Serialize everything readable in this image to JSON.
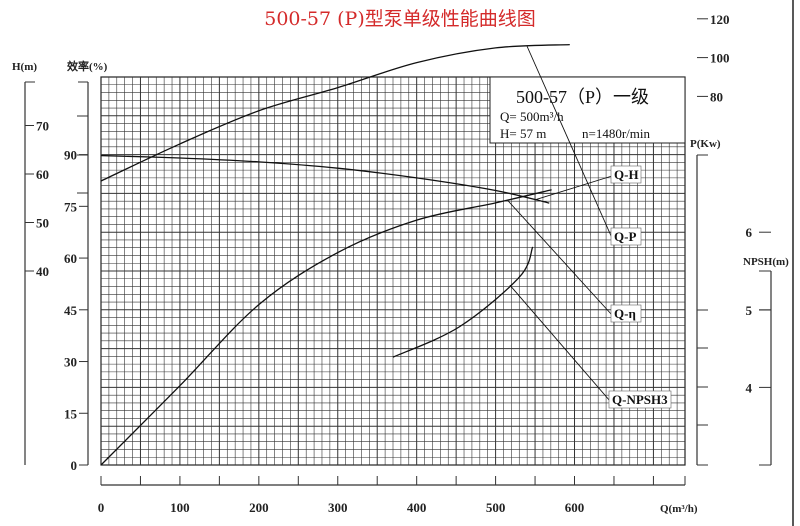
{
  "title": "500-57 (P)型泵单级性能曲线图",
  "info_box": {
    "model": "500-57（P）一级",
    "flow": "Q= 500m³/h",
    "head": "H= 57 m",
    "speed": "n=1480r/min"
  },
  "chart_data": {
    "type": "line",
    "title": "500-57 (P)型泵单级性能曲线图",
    "grid": true,
    "x_axis": {
      "label": "Q(m³/h)",
      "range": [
        0,
        740
      ],
      "ticks": [
        0,
        100,
        200,
        300,
        400,
        500,
        600
      ]
    },
    "y_axes": [
      {
        "id": "H",
        "label": "H(m)",
        "side": "left",
        "range": [
          0,
          80
        ],
        "ticks": [
          40,
          50,
          60,
          70
        ]
      },
      {
        "id": "eta",
        "label": "效率(%)",
        "side": "left",
        "range": [
          0,
          112.5
        ],
        "ticks": [
          0,
          15,
          30,
          45,
          60,
          75,
          90
        ]
      },
      {
        "id": "P",
        "label": "P(Kw)",
        "side": "right",
        "range": [
          -110,
          90
        ],
        "ticks": [
          80,
          100,
          120
        ]
      },
      {
        "id": "NPSH",
        "label": "NPSH(m)",
        "side": "right",
        "range": [
          3,
          8
        ],
        "ticks": [
          4,
          5,
          6
        ]
      }
    ],
    "series": [
      {
        "name": "Q-H",
        "axis": "H",
        "x": [
          0,
          100,
          200,
          300,
          400,
          500,
          568
        ],
        "y": [
          63.8,
          63.3,
          62.5,
          61.2,
          59.2,
          56.6,
          54.0
        ]
      },
      {
        "name": "Q-P",
        "axis": "P",
        "x": [
          0,
          100,
          200,
          300,
          400,
          500,
          594
        ],
        "y": [
          36.4,
          55.5,
          72.6,
          84.5,
          97.4,
          105.0,
          106.7
        ]
      },
      {
        "name": "Q-η",
        "axis": "eta",
        "x": [
          0,
          100,
          200,
          300,
          400,
          500,
          571
        ],
        "y": [
          0,
          23,
          46.5,
          61.6,
          71,
          76,
          79.8
        ]
      },
      {
        "name": "Q-NPSH3",
        "axis": "NPSH",
        "x": [
          370,
          454,
          530,
          547
        ],
        "y": [
          4.39,
          4.78,
          5.42,
          5.81
        ]
      }
    ]
  }
}
